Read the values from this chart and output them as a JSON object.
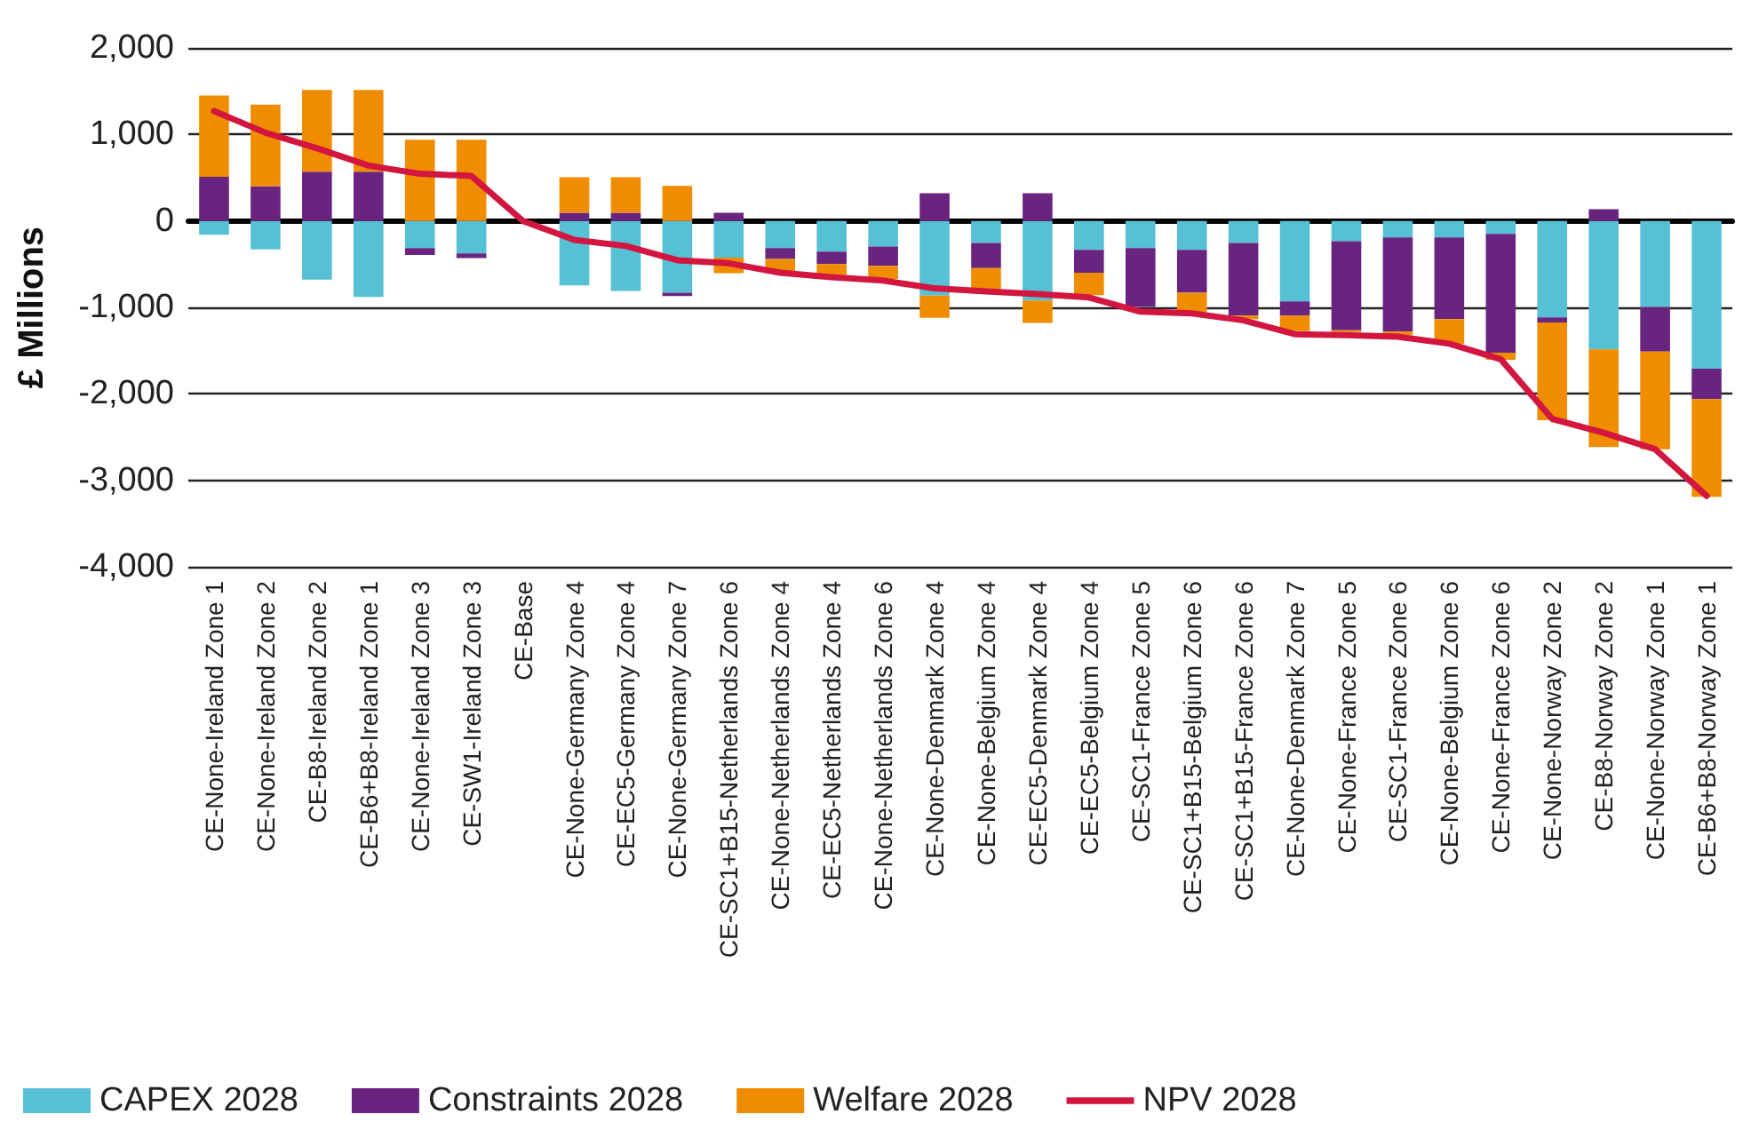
{
  "chart_data": {
    "type": "bar",
    "stacked": true,
    "ylabel": "£ Millions",
    "categories": [
      "CE-None-Ireland Zone 1",
      "CE-None-Ireland Zone 2",
      "CE-B8-Ireland Zone 2",
      "CE-B6+B8-Ireland Zone 1",
      "CE-None-Ireland Zone 3",
      "CE-SW1-Ireland Zone 3",
      "CE-Base",
      "CE-None-Germany Zone 4",
      "CE-EC5-Germany Zone 4",
      "CE-None-Germany Zone 7",
      "CE-SC1+B15-Netherlands Zone 6",
      "CE-None-Netherlands Zone 4",
      "CE-EC5-Netherlands Zone 4",
      "CE-None-Netherlands Zone 6",
      "CE-None-Denmark Zone 4",
      "CE-None-Belgium Zone 4",
      "CE-EC5-Denmark Zone 4",
      "CE-EC5-Belgium Zone 4",
      "CE-SC1-France Zone 5",
      "CE-SC1+B15-Belgium Zone 6",
      "CE-SC1+B15-France Zone 6",
      "CE-None-Denmark Zone 7",
      "CE-None-France Zone 5",
      "CE-SC1-France Zone 6",
      "CE-None-Belgium Zone 6",
      "CE-None-France Zone 6",
      "CE-None-Norway Zone 2",
      "CE-B8-Norway Zone 2",
      "CE-None-Norway Zone 1",
      "CE-B6+B8-Norway Zone 1"
    ],
    "series": [
      {
        "name": "CAPEX 2028",
        "color": "#56c0d5",
        "values": [
          -160,
          -330,
          -680,
          -880,
          -315,
          -375,
          0,
          -745,
          -810,
          -830,
          -425,
          -315,
          -355,
          -295,
          -865,
          -255,
          -920,
          -335,
          -315,
          -335,
          -255,
          -930,
          -235,
          -190,
          -190,
          -150,
          -1115,
          -1485,
          -995,
          -1710
        ]
      },
      {
        "name": "Constraints 2028",
        "color": "#68247f",
        "values": [
          510,
          400,
          570,
          570,
          -80,
          -55,
          0,
          95,
          95,
          -40,
          95,
          -125,
          -145,
          -225,
          320,
          -290,
          320,
          -265,
          -680,
          -495,
          -840,
          -165,
          -1030,
          -1090,
          -945,
          -1375,
          -60,
          135,
          -515,
          -350
        ]
      },
      {
        "name": "Welfare 2028",
        "color": "#f08c00",
        "values": [
          940,
          945,
          945,
          945,
          940,
          940,
          0,
          410,
          410,
          405,
          -180,
          -165,
          -125,
          -150,
          -255,
          -255,
          -260,
          -260,
          null,
          -225,
          -40,
          -180,
          -20,
          -40,
          -290,
          -80,
          -1130,
          -1130,
          -1130,
          -1130
        ]
      },
      {
        "name": "NPV 2028",
        "type": "line",
        "color": "#d2163f",
        "marker": "none",
        "line_style": "solid",
        "values": [
          1270,
          1020,
          840,
          640,
          545,
          520,
          0,
          -220,
          -290,
          -455,
          -490,
          -600,
          -650,
          -690,
          -780,
          -815,
          -845,
          -885,
          -1050,
          -1070,
          -1150,
          -1310,
          -1320,
          -1340,
          -1420,
          -1600,
          -2290,
          -2450,
          -2640,
          -3180
        ]
      }
    ],
    "ylim": [
      -4000,
      2000
    ],
    "yticks": [
      {
        "value": -4000,
        "label": "-4,000"
      },
      {
        "value": -3000,
        "label": "-3,000"
      },
      {
        "value": -2000,
        "label": "-2,000"
      },
      {
        "value": -1000,
        "label": "-1,000"
      },
      0,
      {
        "value": 1000,
        "label": "1,000"
      },
      {
        "value": 2000,
        "label": "2,000"
      }
    ],
    "grid": "y",
    "legend": "bottom left"
  }
}
